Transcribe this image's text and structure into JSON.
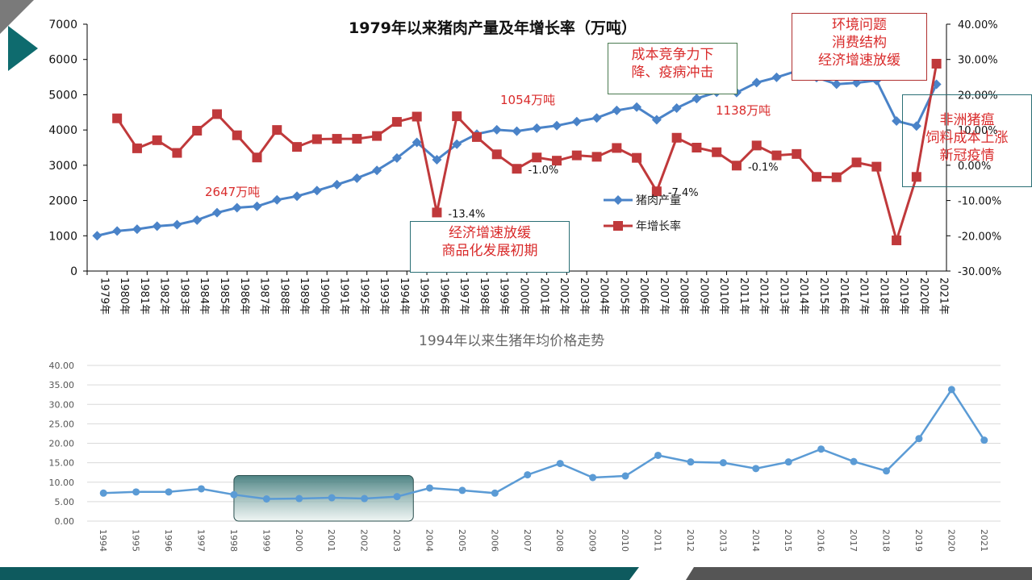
{
  "colors": {
    "production": "#4a83c8",
    "growth": "#c0393b",
    "price": "#5b9bd5",
    "annotation_red": "#d92b2b",
    "teal_dark": "#0e5a5e",
    "band_gray": "#555555"
  },
  "chart_data": [
    {
      "type": "line",
      "title": "1979年以来猪肉产量及年增长率（万吨）",
      "categories": [
        "1979年",
        "1980年",
        "1981年",
        "1982年",
        "1983年",
        "1984年",
        "1985年",
        "1986年",
        "1987年",
        "1988年",
        "1989年",
        "1990年",
        "1991年",
        "1992年",
        "1993年",
        "1994年",
        "1995年",
        "1996年",
        "1997年",
        "1998年",
        "1999年",
        "2000年",
        "2001年",
        "2002年",
        "2003年",
        "2004年",
        "2005年",
        "2006年",
        "2007年",
        "2008年",
        "2009年",
        "2010年",
        "2011年",
        "2012年",
        "2013年",
        "2014年",
        "2015年",
        "2016年",
        "2017年",
        "2018年",
        "2019年",
        "2020年",
        "2021年"
      ],
      "series": [
        {
          "name": "猪肉产量",
          "axis": "left",
          "values": [
            1001,
            1134,
            1188,
            1272,
            1316,
            1445,
            1655,
            1796,
            1835,
            2018,
            2123,
            2281,
            2452,
            2635,
            2854,
            3205,
            3648,
            3158,
            3596,
            3884,
            4006,
            3966,
            4052,
            4123,
            4239,
            4341,
            4555,
            4650,
            4288,
            4621,
            4890,
            5071,
            5060,
            5343,
            5493,
            5671,
            5487,
            5299,
            5340,
            5404,
            4255,
            4113,
            5296
          ]
        },
        {
          "name": "年增长率",
          "axis": "right",
          "values": [
            null,
            13.3,
            4.8,
            7.1,
            3.5,
            9.8,
            14.5,
            8.5,
            2.2,
            10.0,
            5.2,
            7.4,
            7.5,
            7.5,
            8.3,
            12.3,
            13.8,
            -13.4,
            13.9,
            8.0,
            3.1,
            -1.0,
            2.2,
            1.3,
            2.8,
            2.4,
            4.9,
            2.1,
            -7.4,
            7.8,
            5.0,
            3.7,
            -0.1,
            5.6,
            2.8,
            3.2,
            -3.3,
            -3.4,
            0.8,
            -0.4,
            -21.3,
            -3.3,
            28.8
          ]
        }
      ],
      "y_left": {
        "min": 0,
        "max": 7000,
        "step": 1000,
        "ticks": [
          "0",
          "1000",
          "2000",
          "3000",
          "4000",
          "5000",
          "6000",
          "7000"
        ]
      },
      "y_right": {
        "min": -30,
        "max": 40,
        "step": 10,
        "ticks": [
          "-30.00%",
          "-20.00%",
          "-10.00%",
          "0.00%",
          "10.00%",
          "20.00%",
          "30.00%",
          "40.00%"
        ]
      },
      "legend_placement": "center-right",
      "grid": false,
      "data_labels": {
        "1996年": "-13.4%",
        "2000年": "-1.0%",
        "2007年": "-7.4%",
        "2011年": "-0.1%"
      }
    },
    {
      "type": "line",
      "title": "1994年以来生猪年均价格走势",
      "categories": [
        "1994",
        "1995",
        "1996",
        "1997",
        "1998",
        "1999",
        "2000",
        "2001",
        "2002",
        "2003",
        "2004",
        "2005",
        "2006",
        "2007",
        "2008",
        "2009",
        "2010",
        "2011",
        "2012",
        "2013",
        "2014",
        "2015",
        "2016",
        "2017",
        "2018",
        "2019",
        "2020",
        "2021"
      ],
      "series": [
        {
          "name": "",
          "values": [
            7.2,
            7.5,
            7.5,
            8.3,
            6.8,
            5.7,
            5.8,
            6.0,
            5.8,
            6.3,
            8.5,
            7.9,
            7.2,
            11.9,
            14.8,
            11.2,
            11.6,
            16.9,
            15.2,
            15.0,
            13.5,
            15.2,
            18.5,
            15.3,
            12.9,
            21.2,
            33.8,
            20.8
          ]
        }
      ],
      "ylim": [
        0,
        40
      ],
      "y_ticks": [
        "0.00",
        "5.00",
        "10.00",
        "15.00",
        "20.00",
        "25.00",
        "30.00",
        "35.00",
        "40.00"
      ],
      "grid": true,
      "highlight_range": [
        "1998",
        "2003"
      ]
    }
  ],
  "annotations": {
    "label_2647": "2647万吨",
    "label_1054": "1054万吨",
    "label_1138": "1138万吨",
    "box_cost": "成本竞争力下\n降、疫病冲击",
    "box_env": "环境问题\n消费结构\n经济增速放缓",
    "box_economy": "经济增速放缓\n商品化发展初期",
    "box_africa": "非洲猪瘟\n饲料成本上涨\n新冠疫情"
  }
}
